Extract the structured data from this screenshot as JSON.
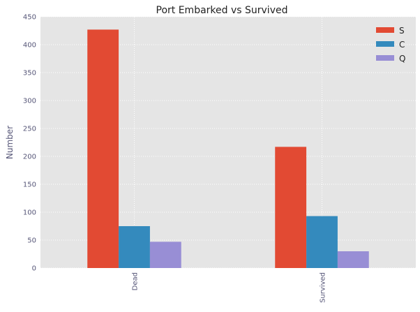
{
  "chart_data": {
    "type": "bar",
    "title": "Port Embarked vs Survived",
    "xlabel": "",
    "ylabel": "Number",
    "categories": [
      "Dead",
      "Survived"
    ],
    "series": [
      {
        "name": "S",
        "values": [
          427,
          217
        ]
      },
      {
        "name": "C",
        "values": [
          75,
          93
        ]
      },
      {
        "name": "Q",
        "values": [
          47,
          30
        ]
      }
    ],
    "ylim": [
      0,
      450
    ],
    "yticks": [
      0,
      50,
      100,
      150,
      200,
      250,
      300,
      350,
      400,
      450
    ],
    "grid": true,
    "legend_position": "top-right",
    "colors": [
      "#E24A33",
      "#348ABD",
      "#988ED5"
    ],
    "background": "#E5E5E5"
  }
}
